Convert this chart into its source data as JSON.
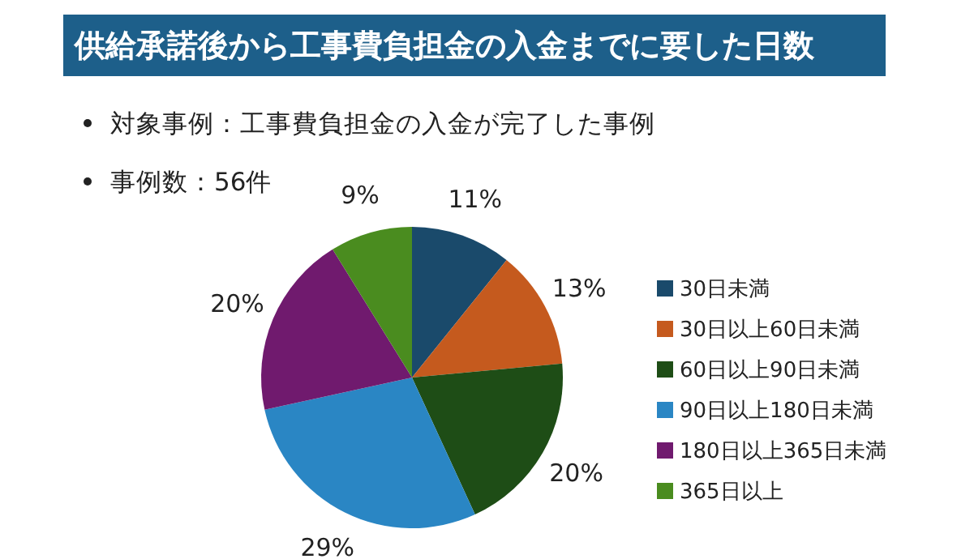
{
  "chart_data": {
    "type": "pie",
    "title": "供給承諾後から工事費負担金の入金までに要した日数",
    "subtitle": "対象事例：工事費負担金の入金が完了した事例",
    "annotations": [
      "事例数：56件"
    ],
    "categories": [
      "30日未満",
      "30日以上60日未満",
      "60日以上90日未満",
      "90日以上180日未満",
      "180日以上365日未満",
      "365日以上"
    ],
    "values": [
      11,
      13,
      20,
      29,
      20,
      9
    ],
    "colors": [
      "#1a4a6b",
      "#c55a1e",
      "#1e4d16",
      "#2a86c4",
      "#701a6e",
      "#4a8c1f"
    ],
    "value_labels": [
      "11%",
      "13%",
      "20%",
      "29%",
      "20%",
      "9%"
    ],
    "legend": "right"
  }
}
